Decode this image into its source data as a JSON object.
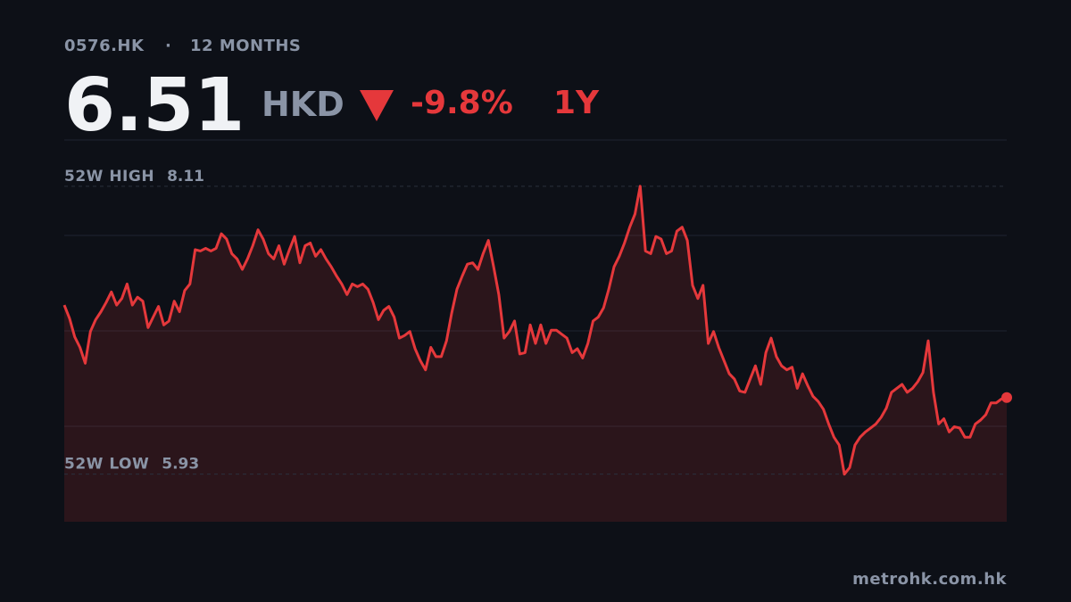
{
  "chart_data": {
    "type": "line",
    "ticker": "0576.HK",
    "separator": "·",
    "period": "12 MONTHS",
    "price": "6.51",
    "currency": "HKD",
    "change": "-9.8%",
    "range": "1Y",
    "high_label": "52W HIGH",
    "high": 8.11,
    "low_label": "52W LOW",
    "low": 5.93,
    "footer": "metrohk.com.hk",
    "color": "#e5383b",
    "ylim": [
      5.57,
      8.46
    ],
    "values": [
      7.21,
      7.11,
      6.97,
      6.89,
      6.77,
      7.01,
      7.1,
      7.16,
      7.23,
      7.31,
      7.21,
      7.26,
      7.37,
      7.21,
      7.27,
      7.24,
      7.04,
      7.12,
      7.2,
      7.06,
      7.09,
      7.24,
      7.16,
      7.32,
      7.37,
      7.63,
      7.62,
      7.64,
      7.62,
      7.64,
      7.75,
      7.71,
      7.6,
      7.56,
      7.48,
      7.56,
      7.66,
      7.78,
      7.71,
      7.6,
      7.56,
      7.66,
      7.52,
      7.63,
      7.73,
      7.53,
      7.66,
      7.68,
      7.58,
      7.63,
      7.56,
      7.5,
      7.43,
      7.37,
      7.29,
      7.37,
      7.35,
      7.37,
      7.33,
      7.23,
      7.1,
      7.17,
      7.2,
      7.12,
      6.96,
      6.98,
      7.01,
      6.88,
      6.79,
      6.72,
      6.89,
      6.82,
      6.82,
      6.94,
      7.15,
      7.33,
      7.43,
      7.52,
      7.53,
      7.48,
      7.6,
      7.7,
      7.5,
      7.29,
      6.96,
      7.01,
      7.09,
      6.84,
      6.85,
      7.06,
      6.92,
      7.06,
      6.92,
      7.02,
      7.02,
      6.99,
      6.96,
      6.85,
      6.88,
      6.81,
      6.92,
      7.09,
      7.12,
      7.19,
      7.33,
      7.5,
      7.58,
      7.68,
      7.8,
      7.9,
      8.11,
      7.62,
      7.6,
      7.73,
      7.71,
      7.6,
      7.62,
      7.77,
      7.8,
      7.7,
      7.36,
      7.26,
      7.36,
      6.92,
      7.01,
      6.89,
      6.79,
      6.69,
      6.65,
      6.56,
      6.55,
      6.65,
      6.75,
      6.61,
      6.85,
      6.96,
      6.82,
      6.75,
      6.72,
      6.74,
      6.58,
      6.69,
      6.6,
      6.52,
      6.48,
      6.42,
      6.31,
      6.21,
      6.15,
      5.93,
      5.98,
      6.15,
      6.21,
      6.25,
      6.28,
      6.31,
      6.36,
      6.43,
      6.55,
      6.58,
      6.61,
      6.55,
      6.58,
      6.63,
      6.7,
      6.94,
      6.55,
      6.31,
      6.35,
      6.25,
      6.29,
      6.28,
      6.21,
      6.21,
      6.31,
      6.34,
      6.38,
      6.47,
      6.47,
      6.5,
      6.51
    ]
  }
}
